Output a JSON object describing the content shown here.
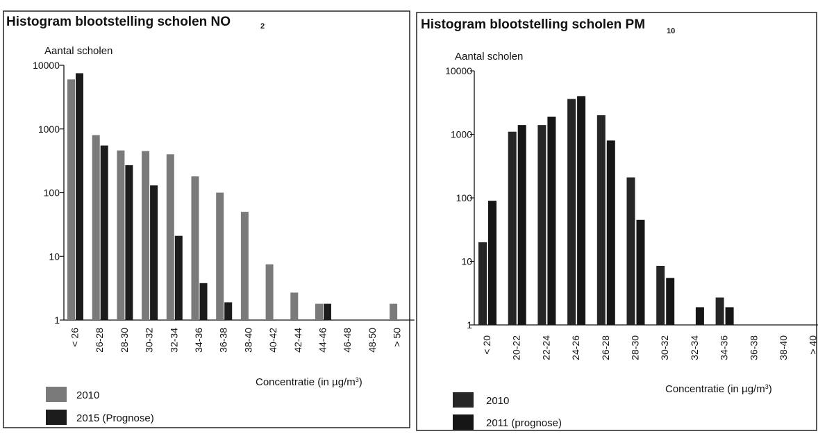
{
  "chart_data": [
    {
      "type": "bar",
      "title": "Histogram blootstelling scholen NO",
      "title_subscript": "2",
      "ylabel": "Aantal scholen",
      "xlabel": "Concentratie (in µg/m",
      "xlabel_sup": "3",
      "xlabel_close": ")",
      "y_scale": "log",
      "ylim": [
        1,
        10000
      ],
      "y_ticks": [
        "10000",
        "1000",
        "100",
        "10",
        "1"
      ],
      "categories": [
        "< 26",
        "26-28",
        "28-30",
        "30-32",
        "32-34",
        "34-36",
        "36-38",
        "38-40",
        "40-42",
        "42-44",
        "44-46",
        "46-48",
        "48-50",
        "> 50"
      ],
      "series": [
        {
          "name": "2010",
          "color": "#7a7a7a",
          "values": [
            6000,
            800,
            460,
            450,
            400,
            180,
            100,
            50,
            7.5,
            2.7,
            1.8,
            null,
            null,
            1.8
          ]
        },
        {
          "name": "2015 (Prognose)",
          "color": "#1c1c1c",
          "values": [
            7500,
            550,
            270,
            130,
            21,
            3.8,
            1.9,
            null,
            null,
            null,
            1.8,
            null,
            null,
            null
          ]
        }
      ],
      "legend_placement": "bottom-left",
      "grid": false
    },
    {
      "type": "bar",
      "title": "Histogram blootstelling scholen PM",
      "title_subscript": "10",
      "ylabel": "Aantal scholen",
      "xlabel": "Concentratie (in µg/m",
      "xlabel_sup": "3",
      "xlabel_close": ")",
      "y_scale": "log",
      "ylim": [
        1,
        10000
      ],
      "y_ticks": [
        "10000",
        "1000",
        "100",
        "10",
        "1"
      ],
      "categories": [
        "< 20",
        "20-22",
        "22-24",
        "24-26",
        "26-28",
        "28-30",
        "30-32",
        "32-34",
        "34-36",
        "36-38",
        "38-40",
        "> 40"
      ],
      "series": [
        {
          "name": "2010",
          "color": "#262626",
          "values": [
            20,
            1100,
            1400,
            3600,
            2000,
            210,
            8.5,
            null,
            2.7,
            null,
            null,
            null
          ]
        },
        {
          "name": "2011 (prognose)",
          "color": "#161616",
          "values": [
            90,
            1400,
            1900,
            4000,
            800,
            45,
            5.5,
            1.9,
            1.9,
            null,
            null,
            null
          ]
        }
      ],
      "legend_placement": "bottom-left",
      "grid": false
    }
  ]
}
